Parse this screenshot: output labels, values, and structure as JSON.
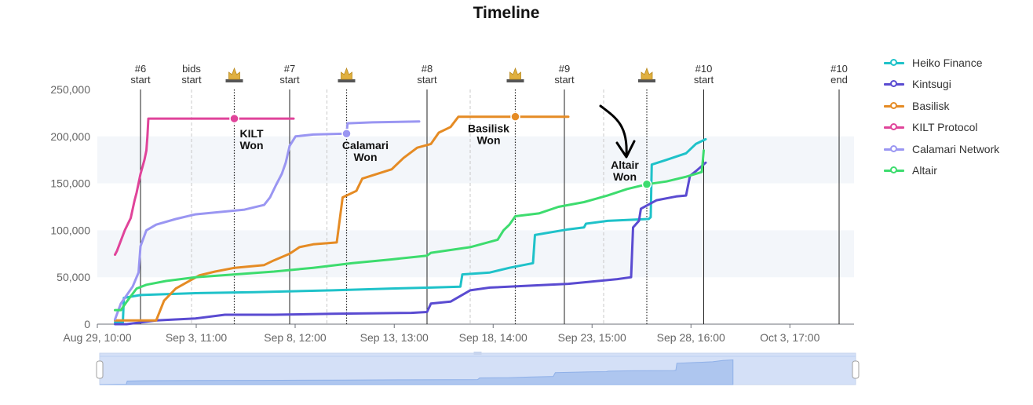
{
  "chart_data": {
    "type": "line",
    "title": "Timeline",
    "xlabel": "",
    "ylabel": "",
    "x_ticks": [
      "Aug 29, 10:00",
      "Sep 3, 11:00",
      "Sep 8, 12:00",
      "Sep 13, 13:00",
      "Sep 18, 14:00",
      "Sep 23, 15:00",
      "Sep 28, 16:00",
      "Oct 3, 17:00"
    ],
    "x_tick_days": [
      0,
      5.04,
      10.08,
      15.13,
      20.17,
      25.21,
      30.25,
      35.29
    ],
    "xlim_days": [
      0,
      37
    ],
    "y_ticks": [
      "0",
      "50,000",
      "100,000",
      "150,000",
      "200,000",
      "250,000"
    ],
    "ylim": [
      0,
      250000
    ],
    "legend_position": "right",
    "auction_markers": [
      {
        "label": "#6\nstart",
        "day": 2.2,
        "style": "solid"
      },
      {
        "label": "bids\nstart",
        "day": 4.8,
        "style": "dashed"
      },
      {
        "label": "#7\nstart",
        "day": 9.8,
        "style": "solid"
      },
      {
        "label": "#8\nstart",
        "day": 16.8,
        "style": "solid"
      },
      {
        "label": "#9\nstart",
        "day": 23.8,
        "style": "solid"
      },
      {
        "label": "#10\nstart",
        "day": 30.9,
        "style": "solid"
      },
      {
        "label": "#10\nend",
        "day": 37.8,
        "style": "solid"
      }
    ],
    "minor_dashed_days": [
      11.7,
      19,
      25.8
    ],
    "wins": [
      {
        "label": "KILT\nWon",
        "day": 6.98,
        "value": 219000,
        "color": "#e0449a",
        "text_dx": 22,
        "text_dy": 24
      },
      {
        "label": "Calamari\nWon",
        "day": 12.7,
        "value": 203000,
        "color": "#9a96f2",
        "text_dx": 24,
        "text_dy": 20
      },
      {
        "label": "Basilisk\nWon",
        "day": 21.3,
        "value": 221000,
        "color": "#e58b24",
        "text_dx": -34,
        "text_dy": 20
      },
      {
        "label": "Altair\nWon",
        "day": 28.0,
        "value": 149000,
        "color": "#3ddc6e",
        "text_dx": -28,
        "text_dy": -20
      }
    ],
    "series": [
      {
        "name": "Heiko Finance",
        "color": "#1fc2c9",
        "points": [
          [
            0.9,
            2000
          ],
          [
            1.3,
            2000
          ],
          [
            1.35,
            28000
          ],
          [
            2.2,
            31000
          ],
          [
            5,
            33000
          ],
          [
            8,
            34000
          ],
          [
            12,
            36000
          ],
          [
            15,
            38000
          ],
          [
            17,
            39000
          ],
          [
            18.5,
            40000
          ],
          [
            18.6,
            53000
          ],
          [
            20,
            55000
          ],
          [
            21,
            60000
          ],
          [
            22.2,
            65000
          ],
          [
            22.3,
            95000
          ],
          [
            24,
            101000
          ],
          [
            24.8,
            103000
          ],
          [
            24.9,
            107000
          ],
          [
            26,
            110000
          ],
          [
            28.1,
            112000
          ],
          [
            28.2,
            114000
          ],
          [
            28.25,
            170000
          ],
          [
            29,
            175000
          ],
          [
            30,
            182000
          ],
          [
            30.5,
            192000
          ],
          [
            31,
            197000
          ]
        ]
      },
      {
        "name": "Kintsugi",
        "color": "#5a4bd1",
        "points": [
          [
            0.9,
            0
          ],
          [
            1.5,
            0
          ],
          [
            3,
            4000
          ],
          [
            5,
            6000
          ],
          [
            6.5,
            10000
          ],
          [
            9,
            10000
          ],
          [
            12,
            11000
          ],
          [
            16,
            12000
          ],
          [
            16.8,
            13000
          ],
          [
            17,
            22000
          ],
          [
            18,
            24000
          ],
          [
            19,
            36000
          ],
          [
            20,
            39000
          ],
          [
            22,
            41000
          ],
          [
            24,
            43000
          ],
          [
            25,
            45000
          ],
          [
            26.5,
            48000
          ],
          [
            27.2,
            50000
          ],
          [
            27.3,
            103000
          ],
          [
            27.6,
            110000
          ],
          [
            27.7,
            123000
          ],
          [
            28.5,
            132000
          ],
          [
            29.5,
            136000
          ],
          [
            30,
            137000
          ],
          [
            30.2,
            158000
          ],
          [
            30.5,
            163000
          ],
          [
            31,
            172000
          ]
        ]
      },
      {
        "name": "Basilisk",
        "color": "#e58b24",
        "points": [
          [
            0.9,
            4000
          ],
          [
            3,
            4000
          ],
          [
            3.4,
            25000
          ],
          [
            4,
            38000
          ],
          [
            4.6,
            45000
          ],
          [
            5.2,
            52000
          ],
          [
            6,
            56000
          ],
          [
            7,
            60000
          ],
          [
            8.5,
            63000
          ],
          [
            9,
            68000
          ],
          [
            9.8,
            75000
          ],
          [
            10.3,
            82000
          ],
          [
            11,
            85000
          ],
          [
            12.2,
            87000
          ],
          [
            12.5,
            135000
          ],
          [
            13.2,
            142000
          ],
          [
            13.5,
            155000
          ],
          [
            15,
            165000
          ],
          [
            15.6,
            177000
          ],
          [
            16.3,
            188000
          ],
          [
            17,
            192000
          ],
          [
            17.4,
            204000
          ],
          [
            18,
            210000
          ],
          [
            18.4,
            221000
          ],
          [
            24,
            221000
          ]
        ]
      },
      {
        "name": "KILT Protocol",
        "color": "#e0449a",
        "points": [
          [
            0.9,
            74000
          ],
          [
            1,
            78000
          ],
          [
            1.4,
            100000
          ],
          [
            1.7,
            113000
          ],
          [
            1.9,
            132000
          ],
          [
            2,
            140000
          ],
          [
            2.2,
            160000
          ],
          [
            2.4,
            175000
          ],
          [
            2.5,
            185000
          ],
          [
            2.55,
            200000
          ],
          [
            2.6,
            219000
          ],
          [
            10,
            219000
          ]
        ]
      },
      {
        "name": "Calamari Network",
        "color": "#9a96f2",
        "points": [
          [
            0.9,
            5000
          ],
          [
            1.2,
            22000
          ],
          [
            1.8,
            40000
          ],
          [
            2.1,
            55000
          ],
          [
            2.2,
            83000
          ],
          [
            2.5,
            100000
          ],
          [
            3,
            106000
          ],
          [
            4,
            112000
          ],
          [
            5,
            117000
          ],
          [
            6.5,
            120000
          ],
          [
            7.5,
            122000
          ],
          [
            8.5,
            127000
          ],
          [
            8.8,
            135000
          ],
          [
            9.1,
            148000
          ],
          [
            9.4,
            160000
          ],
          [
            9.6,
            172000
          ],
          [
            9.8,
            190000
          ],
          [
            10.1,
            200000
          ],
          [
            11,
            202000
          ],
          [
            12.7,
            203000
          ],
          [
            12.75,
            214000
          ],
          [
            14,
            215000
          ],
          [
            16.4,
            216000
          ]
        ]
      },
      {
        "name": "Altair",
        "color": "#3ddc6e",
        "points": [
          [
            0.9,
            15000
          ],
          [
            1.2,
            15000
          ],
          [
            1.5,
            24000
          ],
          [
            2,
            38000
          ],
          [
            2.5,
            42000
          ],
          [
            3.5,
            46000
          ],
          [
            5,
            50000
          ],
          [
            7,
            53000
          ],
          [
            9,
            56000
          ],
          [
            11,
            60000
          ],
          [
            13,
            65000
          ],
          [
            15,
            69000
          ],
          [
            16.8,
            73000
          ],
          [
            17,
            76000
          ],
          [
            19,
            82000
          ],
          [
            20.4,
            90000
          ],
          [
            20.7,
            100000
          ],
          [
            21,
            106000
          ],
          [
            21.3,
            115000
          ],
          [
            22.5,
            118000
          ],
          [
            23.5,
            125000
          ],
          [
            24.8,
            130000
          ],
          [
            26,
            137000
          ],
          [
            27,
            144000
          ],
          [
            28,
            149000
          ],
          [
            29,
            152000
          ],
          [
            30,
            157000
          ],
          [
            30.8,
            162000
          ],
          [
            30.9,
            185000
          ]
        ]
      }
    ]
  }
}
